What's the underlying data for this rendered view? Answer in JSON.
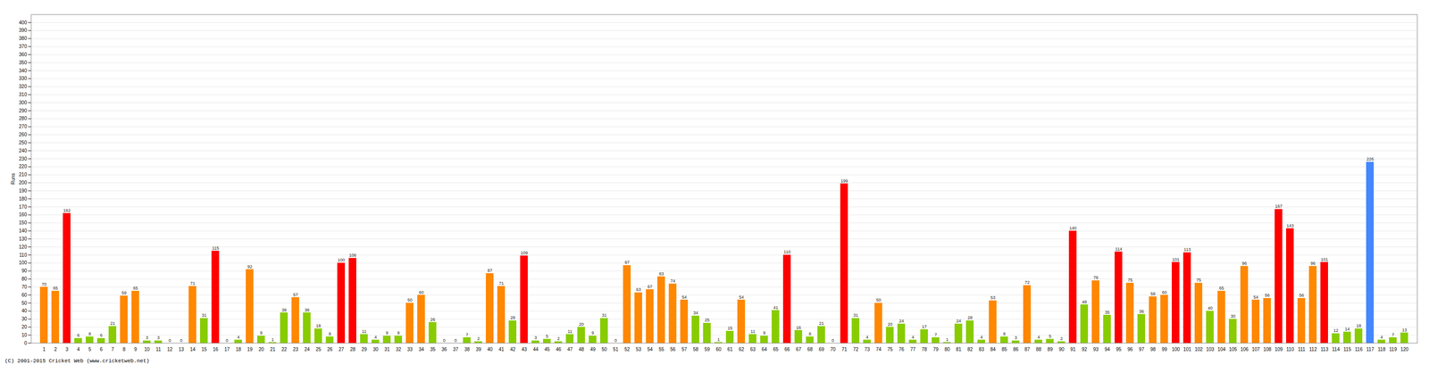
{
  "chart_data": {
    "type": "bar",
    "ylabel": "Runs",
    "categories": [
      "1",
      "2",
      "3",
      "4",
      "5",
      "6",
      "7",
      "8",
      "9",
      "10",
      "11",
      "12",
      "13",
      "14",
      "15",
      "16",
      "17",
      "18",
      "19",
      "20",
      "21",
      "22",
      "23",
      "24",
      "25",
      "26",
      "27",
      "28",
      "29",
      "30",
      "31",
      "32",
      "33",
      "34",
      "35",
      "36",
      "37",
      "38",
      "39",
      "40",
      "41",
      "42",
      "43",
      "44",
      "45",
      "46",
      "47",
      "48",
      "49",
      "50",
      "51",
      "52",
      "53",
      "54",
      "55",
      "56",
      "57",
      "58",
      "59",
      "60",
      "61",
      "62",
      "63",
      "64",
      "65",
      "66",
      "67",
      "68",
      "69",
      "70",
      "71",
      "72",
      "73",
      "74",
      "75",
      "76",
      "77",
      "78",
      "79",
      "80",
      "81",
      "82",
      "83",
      "84",
      "85",
      "86",
      "87",
      "88",
      "89",
      "90",
      "91",
      "92",
      "93",
      "94",
      "95",
      "96",
      "97",
      "98",
      "99",
      "100",
      "101",
      "102",
      "103",
      "104",
      "105",
      "106",
      "107",
      "108",
      "109",
      "110",
      "111",
      "112",
      "113",
      "114",
      "115",
      "116",
      "117",
      "118",
      "119",
      "120"
    ],
    "values": [
      70,
      65,
      162,
      6,
      8,
      6,
      21,
      59,
      65,
      3,
      3,
      0,
      0,
      71,
      31,
      115,
      0,
      4,
      92,
      9,
      1,
      38,
      57,
      38,
      18,
      8,
      100,
      106,
      11,
      4,
      9,
      9,
      50,
      60,
      26,
      0,
      0,
      7,
      2,
      87,
      71,
      28,
      109,
      3,
      5,
      2,
      11,
      20,
      9,
      31,
      0,
      97,
      63,
      67,
      83,
      74,
      54,
      34,
      25,
      1,
      15,
      54,
      11,
      9,
      41,
      110,
      16,
      8,
      21,
      0,
      199,
      31,
      4,
      50,
      20,
      24,
      4,
      17,
      7,
      1,
      24,
      28,
      4,
      53,
      8,
      3,
      72,
      4,
      5,
      2,
      140,
      48,
      78,
      35,
      114,
      75,
      36,
      58,
      60,
      101,
      113,
      75,
      40,
      65,
      30,
      96,
      54,
      56,
      167,
      143,
      56,
      96,
      101,
      12,
      14,
      18,
      226,
      4,
      7,
      13
    ],
    "colors": [
      "#ff8800",
      "#ff8800",
      "#ff0000",
      "#88cc00",
      "#88cc00",
      "#88cc00",
      "#88cc00",
      "#ff8800",
      "#ff8800",
      "#88cc00",
      "#88cc00",
      "#88cc00",
      "#88cc00",
      "#ff8800",
      "#88cc00",
      "#ff0000",
      "#88cc00",
      "#88cc00",
      "#ff8800",
      "#88cc00",
      "#88cc00",
      "#88cc00",
      "#ff8800",
      "#88cc00",
      "#88cc00",
      "#88cc00",
      "#ff0000",
      "#ff0000",
      "#88cc00",
      "#88cc00",
      "#88cc00",
      "#88cc00",
      "#ff8800",
      "#ff8800",
      "#88cc00",
      "#88cc00",
      "#88cc00",
      "#88cc00",
      "#88cc00",
      "#ff8800",
      "#ff8800",
      "#88cc00",
      "#ff0000",
      "#88cc00",
      "#88cc00",
      "#88cc00",
      "#88cc00",
      "#88cc00",
      "#88cc00",
      "#88cc00",
      "#88cc00",
      "#ff8800",
      "#ff8800",
      "#ff8800",
      "#ff8800",
      "#ff8800",
      "#ff8800",
      "#88cc00",
      "#88cc00",
      "#88cc00",
      "#88cc00",
      "#ff8800",
      "#88cc00",
      "#88cc00",
      "#88cc00",
      "#ff0000",
      "#88cc00",
      "#88cc00",
      "#88cc00",
      "#88cc00",
      "#ff0000",
      "#88cc00",
      "#88cc00",
      "#ff8800",
      "#88cc00",
      "#88cc00",
      "#88cc00",
      "#88cc00",
      "#88cc00",
      "#88cc00",
      "#88cc00",
      "#88cc00",
      "#88cc00",
      "#ff8800",
      "#88cc00",
      "#88cc00",
      "#ff8800",
      "#88cc00",
      "#88cc00",
      "#88cc00",
      "#ff0000",
      "#88cc00",
      "#ff8800",
      "#88cc00",
      "#ff0000",
      "#ff8800",
      "#88cc00",
      "#ff8800",
      "#ff8800",
      "#ff0000",
      "#ff0000",
      "#ff8800",
      "#88cc00",
      "#ff8800",
      "#88cc00",
      "#ff8800",
      "#ff8800",
      "#ff8800",
      "#ff0000",
      "#ff0000",
      "#ff8800",
      "#ff8800",
      "#ff0000",
      "#88cc00",
      "#88cc00",
      "#88cc00",
      "#4488ff",
      "#88cc00",
      "#88cc00",
      "#88cc00"
    ],
    "ylim": [
      0,
      410
    ],
    "yticks": [
      0,
      10,
      20,
      30,
      40,
      50,
      60,
      70,
      80,
      90,
      100,
      110,
      120,
      130,
      140,
      150,
      160,
      170,
      180,
      190,
      200,
      210,
      220,
      230,
      240,
      250,
      260,
      270,
      280,
      290,
      300,
      310,
      320,
      330,
      340,
      350,
      360,
      370,
      380,
      390,
      400
    ],
    "grid": true,
    "data_labels": true,
    "annotations": [
      "(C) 2001-2015 Cricket Web (www.cricketweb.net)"
    ]
  }
}
